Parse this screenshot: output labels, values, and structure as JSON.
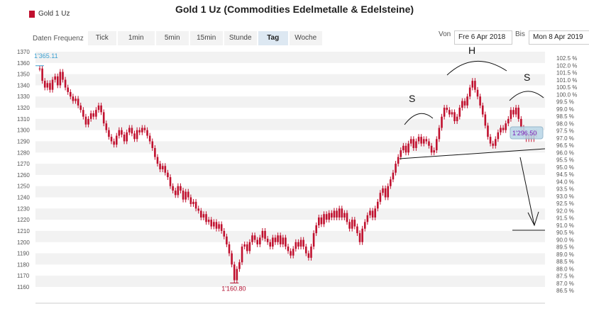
{
  "title": "Gold 1 Uz (Commodities Edelmetalle & Edelsteine)",
  "legend": {
    "label": "Gold 1 Uz",
    "color": "#c0102e"
  },
  "toolbar": {
    "label": "Daten Frequenz",
    "buttons": [
      "Tick",
      "1min",
      "5min",
      "15min",
      "Stunde",
      "Tag",
      "Woche"
    ],
    "active": "Tag"
  },
  "date_range": {
    "from_label": "Von",
    "from": "Fre 6 Apr 2018",
    "to_label": "Bis",
    "to": "Mon 8 Apr 2019"
  },
  "colors": {
    "candles": "#c0102e",
    "band": "#f2f2f2",
    "max_label": "#3a9fd0",
    "min_label": "#b01030",
    "current_label": "#7a1fb8",
    "current_box": "#bcd8e8"
  },
  "chart_data": {
    "type": "candlestick",
    "title": "Gold 1 Uz (Commodities Edelmetalle & Edelsteine)",
    "xlabel": "",
    "ylabel": "",
    "ylim": [
      1160,
      1370
    ],
    "y_ticks": [
      1160,
      1170,
      1180,
      1190,
      1200,
      1210,
      1220,
      1230,
      1240,
      1250,
      1260,
      1270,
      1280,
      1290,
      1300,
      1310,
      1320,
      1330,
      1340,
      1350,
      1360,
      1370
    ],
    "y2_ticks": [
      "86.5 %",
      "87.0 %",
      "87.5 %",
      "88.0 %",
      "88.5 %",
      "89.0 %",
      "89.5 %",
      "90.0 %",
      "90.5 %",
      "91.0 %",
      "91.5 %",
      "92.0 %",
      "92.5 %",
      "93.0 %",
      "93.5 %",
      "94.0 %",
      "94.5 %",
      "95.0 %",
      "95.5 %",
      "96.0 %",
      "96.5 %",
      "97.0 %",
      "97.5 %",
      "98.0 %",
      "98.5 %",
      "99.0 %",
      "99.5 %",
      "100.0 %",
      "100.5 %",
      "101.0 %",
      "101.5 %",
      "102.0 %",
      "102.5 %"
    ],
    "x_range": [
      "2018-04-06",
      "2019-04-08"
    ],
    "grid": "alternating horizontal bands",
    "max_label": "1'365.11",
    "min_label": "1'160.80",
    "current_label": "1'296.50",
    "annotations": [
      "S",
      "H",
      "S"
    ],
    "series": [
      {
        "values": [
          1355,
          1344,
          1338,
          1342,
          1336,
          1345,
          1348,
          1340,
          1352,
          1345,
          1338,
          1334,
          1330,
          1326,
          1328,
          1322,
          1318,
          1312,
          1305,
          1310,
          1315,
          1312,
          1318,
          1322,
          1316,
          1306,
          1300,
          1294,
          1290,
          1287,
          1295,
          1300,
          1296,
          1290,
          1298,
          1302,
          1297,
          1292,
          1300,
          1298,
          1302,
          1300,
          1295,
          1290,
          1284,
          1276,
          1270,
          1265,
          1268,
          1262,
          1258,
          1250,
          1246,
          1242,
          1250,
          1246,
          1238,
          1245,
          1240,
          1234,
          1236,
          1230,
          1228,
          1222,
          1225,
          1218,
          1220,
          1214,
          1218,
          1212,
          1216,
          1210,
          1205,
          1198,
          1190,
          1180,
          1166,
          1176,
          1182,
          1196,
          1198,
          1192,
          1200,
          1206,
          1202,
          1198,
          1204,
          1210,
          1203,
          1200,
          1196,
          1204,
          1200,
          1206,
          1198,
          1204,
          1196,
          1192,
          1188,
          1194,
          1200,
          1196,
          1202,
          1196,
          1190,
          1186,
          1196,
          1208,
          1215,
          1222,
          1216,
          1225,
          1220,
          1226,
          1222,
          1228,
          1222,
          1230,
          1222,
          1226,
          1218,
          1212,
          1220,
          1214,
          1208,
          1200,
          1212,
          1218,
          1224,
          1228,
          1222,
          1230,
          1236,
          1244,
          1248,
          1240,
          1250,
          1256,
          1262,
          1270,
          1276,
          1282,
          1286,
          1280,
          1288,
          1292,
          1284,
          1290,
          1294,
          1288,
          1292,
          1290,
          1286,
          1280,
          1282,
          1292,
          1302,
          1312,
          1320,
          1318,
          1314,
          1316,
          1308,
          1312,
          1320,
          1326,
          1322,
          1330,
          1338,
          1344,
          1336,
          1330,
          1322,
          1314,
          1304,
          1294,
          1288,
          1286,
          1292,
          1298,
          1302,
          1300,
          1306,
          1310,
          1318,
          1314,
          1320,
          1310,
          1302,
          1296,
          1292,
          1296,
          1292,
          1298,
          1296
        ]
      }
    ]
  }
}
